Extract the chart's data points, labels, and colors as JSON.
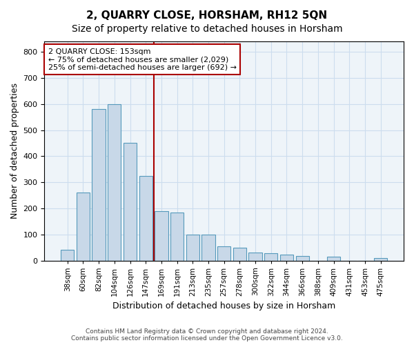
{
  "title": "2, QUARRY CLOSE, HORSHAM, RH12 5QN",
  "subtitle": "Size of property relative to detached houses in Horsham",
  "xlabel": "Distribution of detached houses by size in Horsham",
  "ylabel": "Number of detached properties",
  "footer_line1": "Contains HM Land Registry data © Crown copyright and database right 2024.",
  "footer_line2": "Contains public sector information licensed under the Open Government Licence v3.0.",
  "categories": [
    "38sqm",
    "60sqm",
    "82sqm",
    "104sqm",
    "126sqm",
    "147sqm",
    "169sqm",
    "191sqm",
    "213sqm",
    "235sqm",
    "257sqm",
    "278sqm",
    "300sqm",
    "322sqm",
    "344sqm",
    "366sqm",
    "388sqm",
    "409sqm",
    "431sqm",
    "453sqm",
    "475sqm"
  ],
  "values": [
    40,
    260,
    580,
    600,
    450,
    325,
    190,
    185,
    100,
    100,
    55,
    50,
    30,
    28,
    22,
    18,
    0,
    15,
    0,
    0,
    8
  ],
  "bar_color": "#c8d8e8",
  "bar_edge_color": "#5599bb",
  "vline_x_index": 5.5,
  "vline_color": "#aa0000",
  "annotation_text": "2 QUARRY CLOSE: 153sqm\n← 75% of detached houses are smaller (2,029)\n25% of semi-detached houses are larger (692) →",
  "annotation_box_color": "#ffffff",
  "annotation_box_edge_color": "#aa0000",
  "ylim": [
    0,
    840
  ],
  "yticks": [
    0,
    100,
    200,
    300,
    400,
    500,
    600,
    700,
    800
  ],
  "grid_color": "#ccddee",
  "background_color": "#eef4f9",
  "title_fontsize": 11,
  "subtitle_fontsize": 10,
  "axis_fontsize": 9
}
